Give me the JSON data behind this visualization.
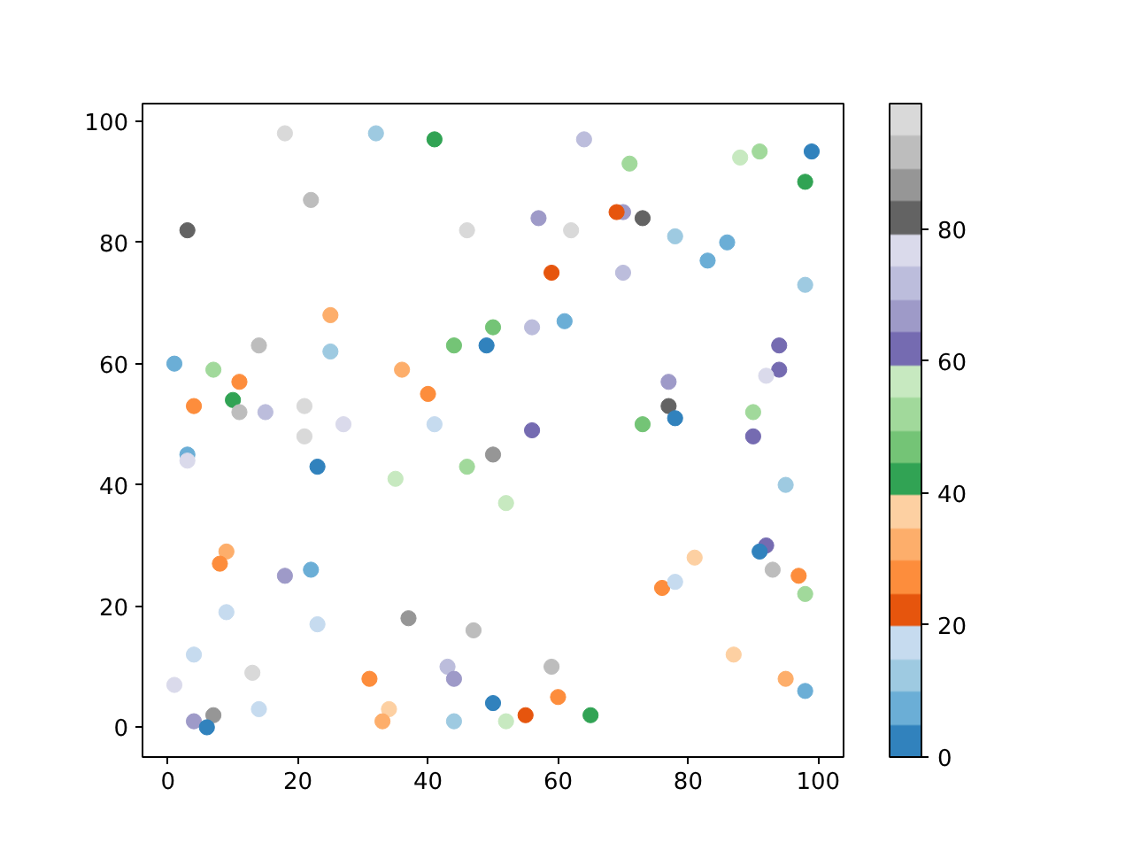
{
  "chart_data": {
    "type": "scatter",
    "marker": "circle",
    "x": [
      18,
      32,
      41,
      22,
      3,
      46,
      25,
      50,
      14,
      25,
      44,
      49,
      1,
      7,
      36,
      11,
      40,
      4,
      10,
      11,
      15,
      21,
      27,
      41,
      21,
      64,
      71,
      88,
      91,
      99,
      98,
      57,
      62,
      70,
      69,
      73,
      78,
      86,
      83,
      59,
      70,
      98,
      56,
      61,
      94,
      94,
      92,
      77,
      77,
      78,
      90,
      73,
      56,
      90,
      3,
      3,
      23,
      35,
      46,
      50,
      52,
      9,
      8,
      18,
      22,
      9,
      23,
      37,
      47,
      4,
      1,
      13,
      31,
      43,
      44,
      14,
      34,
      33,
      4,
      7,
      6,
      44,
      50,
      52,
      95,
      92,
      91,
      93,
      81,
      97,
      98,
      76,
      78,
      87,
      95,
      98,
      59,
      60,
      55,
      65
    ],
    "values": [
      98,
      98,
      97,
      87,
      82,
      82,
      68,
      66,
      63,
      62,
      63,
      63,
      60,
      59,
      59,
      57,
      55,
      53,
      54,
      52,
      52,
      53,
      50,
      50,
      48,
      97,
      93,
      94,
      95,
      95,
      90,
      84,
      82,
      85,
      85,
      84,
      81,
      80,
      77,
      75,
      75,
      73,
      66,
      67,
      63,
      59,
      58,
      57,
      53,
      51,
      52,
      50,
      49,
      48,
      45,
      44,
      43,
      41,
      43,
      45,
      37,
      29,
      27,
      25,
      26,
      19,
      17,
      18,
      16,
      12,
      7,
      9,
      8,
      10,
      8,
      3,
      3,
      1,
      1,
      2,
      0,
      1,
      4,
      1,
      40,
      30,
      29,
      26,
      28,
      25,
      22,
      23,
      24,
      12,
      8,
      6,
      10,
      5,
      2,
      2
    ],
    "cvalues": [
      97,
      12,
      42,
      92,
      82,
      97,
      32,
      47,
      92,
      12,
      47,
      2,
      7,
      52,
      32,
      27,
      27,
      27,
      42,
      92,
      72,
      97,
      77,
      17,
      97,
      72,
      52,
      57,
      52,
      2,
      42,
      67,
      97,
      67,
      22,
      82,
      12,
      7,
      7,
      22,
      72,
      12,
      72,
      7,
      62,
      62,
      77,
      67,
      82,
      2,
      52,
      47,
      62,
      62,
      7,
      77,
      2,
      57,
      52,
      87,
      57,
      32,
      27,
      67,
      7,
      17,
      17,
      87,
      92,
      17,
      77,
      97,
      27,
      72,
      67,
      17,
      37,
      32,
      67,
      87,
      2,
      12,
      2,
      57,
      12,
      62,
      2,
      92,
      37,
      27,
      52,
      27,
      17,
      37,
      32,
      7,
      92,
      27,
      22,
      42
    ],
    "clim": [
      0,
      99
    ],
    "cticks": [
      0,
      20,
      40,
      60,
      80
    ],
    "xlim": [
      -3.9,
      103.9
    ],
    "ylim": [
      -4.9,
      102.9
    ],
    "xticks": [
      0,
      20,
      40,
      60,
      80,
      100
    ],
    "yticks": [
      0,
      20,
      40,
      60,
      80,
      100
    ]
  }
}
